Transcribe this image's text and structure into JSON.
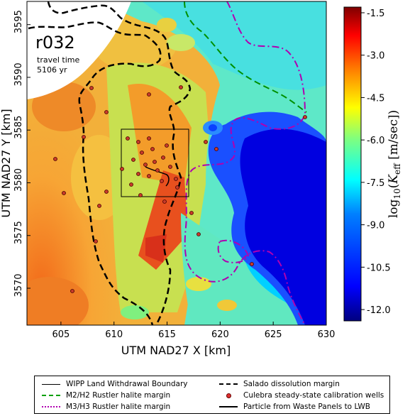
{
  "map": {
    "run_label": "r032",
    "travel_time_label": "travel time",
    "travel_time_value": "5106 yr",
    "x_axis_label": "UTM NAD27 X [km]",
    "y_axis_label": "UTM NAD27 Y [km]",
    "x_ticks": [
      "605",
      "610",
      "615",
      "620",
      "625",
      "630"
    ],
    "y_ticks": [
      "3570",
      "3575",
      "3580",
      "3585",
      "3590",
      "3595"
    ],
    "x_range": [
      601.8,
      630.0
    ],
    "y_range": [
      3566.5,
      3597.2
    ]
  },
  "colorbar": {
    "ticks": [
      "-1.5",
      "-3.0",
      "-4.5",
      "-6.0",
      "-7.5",
      "-9.0",
      "-10.5",
      "-12.0"
    ],
    "range": [
      -12.4,
      -1.3
    ],
    "colors": [
      "#00007f",
      "#0000ff",
      "#007fff",
      "#00ffff",
      "#7fff7f",
      "#ffff00",
      "#ff7f00",
      "#ff0000",
      "#7f0000"
    ]
  },
  "legend": {
    "items": [
      {
        "label": "WIPP Land Withdrawal Boundary",
        "symbol": "thin-line",
        "color": "#000000"
      },
      {
        "label": "Salado dissolution margin",
        "symbol": "dashed-line",
        "color": "#000000"
      },
      {
        "label": "M2/H2 Rustler halite margin",
        "symbol": "dashed-line",
        "color": "#00a000"
      },
      {
        "label": "Culebra steady-state calibration wells",
        "symbol": "dot",
        "color": "#e03030"
      },
      {
        "label": "M3/H3 Rustler halite margin",
        "symbol": "dash-dot-line",
        "color": "#b000b0"
      },
      {
        "label": "Particle from Waste Panels to LWB",
        "symbol": "solid-line",
        "color": "#000000"
      }
    ]
  }
}
